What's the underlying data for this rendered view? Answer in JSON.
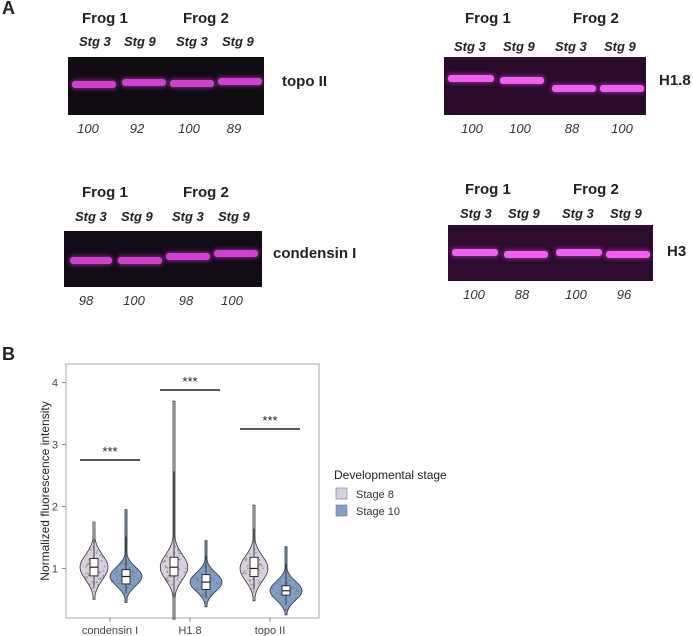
{
  "panel_a": {
    "letter": "A",
    "frog_labels": [
      "Frog 1",
      "Frog 2"
    ],
    "stage_labels": [
      "Stg 3",
      "Stg 9",
      "Stg 3",
      "Stg 9"
    ],
    "blots": [
      {
        "protein": "topo II",
        "quantification": [
          "100",
          "92",
          "100",
          "89"
        ],
        "background_color": "#0e0b10",
        "band_color": "#cc33cc"
      },
      {
        "protein": "H1.8",
        "quantification": [
          "100",
          "100",
          "88",
          "100"
        ],
        "background_color": "#2a0a2c",
        "band_color": "#ee55ee"
      },
      {
        "protein": "condensin I",
        "quantification": [
          "98",
          "100",
          "98",
          "100"
        ],
        "background_color": "#120c16",
        "band_color": "#cc33cc"
      },
      {
        "protein": "H3",
        "quantification": [
          "100",
          "88",
          "100",
          "96"
        ],
        "background_color": "#2c0b2e",
        "band_color": "#ee55ee"
      }
    ]
  },
  "panel_b": {
    "letter": "B",
    "chart_data": {
      "type": "violin",
      "ylabel": "Normalized fluorescence intensity",
      "xlabel": "",
      "ylim": [
        0.2,
        4.3
      ],
      "yticks": [
        "1",
        "2",
        "3",
        "4"
      ],
      "categories": [
        "condensin I",
        "H1.8",
        "topo II"
      ],
      "legend": {
        "title": "Developmental stage",
        "entries": [
          "Stage 8",
          "Stage 10"
        ],
        "position": "right"
      },
      "series": [
        {
          "name": "Stage 8",
          "color": "#d8cfe0",
          "median": [
            1.02,
            1.02,
            1.0
          ],
          "q1": [
            0.88,
            0.88,
            0.87
          ],
          "q3": [
            1.16,
            1.18,
            1.18
          ],
          "min": [
            0.5,
            0.18,
            0.48
          ],
          "max": [
            1.75,
            3.7,
            2.02
          ]
        },
        {
          "name": "Stage 10",
          "color": "#7f9fc9",
          "median": [
            0.87,
            0.78,
            0.64
          ],
          "q1": [
            0.75,
            0.66,
            0.57
          ],
          "q3": [
            0.98,
            0.9,
            0.72
          ],
          "min": [
            0.45,
            0.38,
            0.25
          ],
          "max": [
            1.95,
            1.45,
            1.35
          ]
        }
      ],
      "significance": [
        {
          "category": "condensin I",
          "label": "***",
          "y": 2.75
        },
        {
          "category": "H1.8",
          "label": "***",
          "y": 3.88
        },
        {
          "category": "topo II",
          "label": "***",
          "y": 3.25
        }
      ]
    }
  }
}
